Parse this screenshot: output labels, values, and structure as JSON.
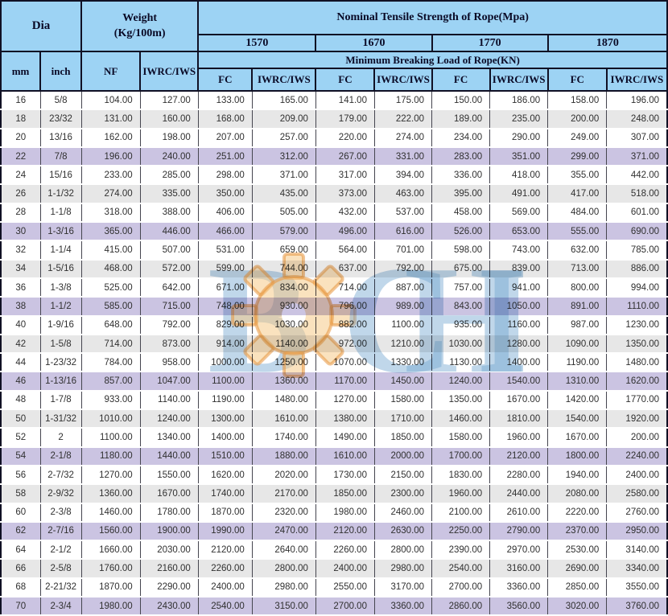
{
  "header": {
    "dia_label": "Dia",
    "weight_label": "Weight",
    "weight_unit": "(Kg/100m)",
    "nominal_label": "Nominal Tensile Strength of Rope(Mpa)",
    "grades": [
      "1570",
      "1670",
      "1770",
      "1870"
    ],
    "min_breaking_label": "Minimum Breaking Load of Rope(KN)",
    "col_mm": "mm",
    "col_inch": "inch",
    "col_nf": "NF",
    "col_iwrc": "IWRC/IWS",
    "col_fc": "FC"
  },
  "watermark": {
    "letters": [
      "B",
      "C",
      "H",
      "I"
    ]
  },
  "colors": {
    "header_bg": "#9dd3f4",
    "border_dark": "#101024",
    "grid_line": "#45454f",
    "stripe_gray": "#e7e7e7",
    "stripe_lavender": "#cbc4e2",
    "watermark_blue": "#74a6d1",
    "watermark_orange": "#e8963e"
  },
  "rows": [
    {
      "mm": "16",
      "inch": "5/8",
      "nf": "104.00",
      "iwrc_iws": "127.00",
      "loads": [
        "133.00",
        "165.00",
        "141.00",
        "175.00",
        "150.00",
        "186.00",
        "158.00",
        "196.00"
      ],
      "stripe": "white"
    },
    {
      "mm": "18",
      "inch": "23/32",
      "nf": "131.00",
      "iwrc_iws": "160.00",
      "loads": [
        "168.00",
        "209.00",
        "179.00",
        "222.00",
        "189.00",
        "235.00",
        "200.00",
        "248.00"
      ],
      "stripe": "gray"
    },
    {
      "mm": "20",
      "inch": "13/16",
      "nf": "162.00",
      "iwrc_iws": "198.00",
      "loads": [
        "207.00",
        "257.00",
        "220.00",
        "274.00",
        "234.00",
        "290.00",
        "249.00",
        "307.00"
      ],
      "stripe": "white"
    },
    {
      "mm": "22",
      "inch": "7/8",
      "nf": "196.00",
      "iwrc_iws": "240.00",
      "loads": [
        "251.00",
        "312.00",
        "267.00",
        "331.00",
        "283.00",
        "351.00",
        "299.00",
        "371.00"
      ],
      "stripe": "lavender"
    },
    {
      "mm": "24",
      "inch": "15/16",
      "nf": "233.00",
      "iwrc_iws": "285.00",
      "loads": [
        "298.00",
        "371.00",
        "317.00",
        "394.00",
        "336.00",
        "418.00",
        "355.00",
        "442.00"
      ],
      "stripe": "white"
    },
    {
      "mm": "26",
      "inch": "1-1/32",
      "nf": "274.00",
      "iwrc_iws": "335.00",
      "loads": [
        "350.00",
        "435.00",
        "373.00",
        "463.00",
        "395.00",
        "491.00",
        "417.00",
        "518.00"
      ],
      "stripe": "gray"
    },
    {
      "mm": "28",
      "inch": "1-1/8",
      "nf": "318.00",
      "iwrc_iws": "388.00",
      "loads": [
        "406.00",
        "505.00",
        "432.00",
        "537.00",
        "458.00",
        "569.00",
        "484.00",
        "601.00"
      ],
      "stripe": "white"
    },
    {
      "mm": "30",
      "inch": "1-3/16",
      "nf": "365.00",
      "iwrc_iws": "446.00",
      "loads": [
        "466.00",
        "579.00",
        "496.00",
        "616.00",
        "526.00",
        "653.00",
        "555.00",
        "690.00"
      ],
      "stripe": "lavender"
    },
    {
      "mm": "32",
      "inch": "1-1/4",
      "nf": "415.00",
      "iwrc_iws": "507.00",
      "loads": [
        "531.00",
        "659.00",
        "564.00",
        "701.00",
        "598.00",
        "743.00",
        "632.00",
        "785.00"
      ],
      "stripe": "white"
    },
    {
      "mm": "34",
      "inch": "1-5/16",
      "nf": "468.00",
      "iwrc_iws": "572.00",
      "loads": [
        "599.00",
        "744.00",
        "637.00",
        "792.00",
        "675.00",
        "839.00",
        "713.00",
        "886.00"
      ],
      "stripe": "gray"
    },
    {
      "mm": "36",
      "inch": "1-3/8",
      "nf": "525.00",
      "iwrc_iws": "642.00",
      "loads": [
        "671.00",
        "834.00",
        "714.00",
        "887.00",
        "757.00",
        "941.00",
        "800.00",
        "994.00"
      ],
      "stripe": "white"
    },
    {
      "mm": "38",
      "inch": "1-1/2",
      "nf": "585.00",
      "iwrc_iws": "715.00",
      "loads": [
        "748.00",
        "930.00",
        "796.00",
        "989.00",
        "843.00",
        "1050.00",
        "891.00",
        "1110.00"
      ],
      "stripe": "lavender"
    },
    {
      "mm": "40",
      "inch": "1-9/16",
      "nf": "648.00",
      "iwrc_iws": "792.00",
      "loads": [
        "829.00",
        "1030.00",
        "882.00",
        "1100.00",
        "935.00",
        "1160.00",
        "987.00",
        "1230.00"
      ],
      "stripe": "white"
    },
    {
      "mm": "42",
      "inch": "1-5/8",
      "nf": "714.00",
      "iwrc_iws": "873.00",
      "loads": [
        "914.00",
        "1140.00",
        "972.00",
        "1210.00",
        "1030.00",
        "1280.00",
        "1090.00",
        "1350.00"
      ],
      "stripe": "gray"
    },
    {
      "mm": "44",
      "inch": "1-23/32",
      "nf": "784.00",
      "iwrc_iws": "958.00",
      "loads": [
        "1000.00",
        "1250.00",
        "1070.00",
        "1330.00",
        "1130.00",
        "1400.00",
        "1190.00",
        "1480.00"
      ],
      "stripe": "white"
    },
    {
      "mm": "46",
      "inch": "1-13/16",
      "nf": "857.00",
      "iwrc_iws": "1047.00",
      "loads": [
        "1100.00",
        "1360.00",
        "1170.00",
        "1450.00",
        "1240.00",
        "1540.00",
        "1310.00",
        "1620.00"
      ],
      "stripe": "lavender"
    },
    {
      "mm": "48",
      "inch": "1-7/8",
      "nf": "933.00",
      "iwrc_iws": "1140.00",
      "loads": [
        "1190.00",
        "1480.00",
        "1270.00",
        "1580.00",
        "1350.00",
        "1670.00",
        "1420.00",
        "1770.00"
      ],
      "stripe": "white"
    },
    {
      "mm": "50",
      "inch": "1-31/32",
      "nf": "1010.00",
      "iwrc_iws": "1240.00",
      "loads": [
        "1300.00",
        "1610.00",
        "1380.00",
        "1710.00",
        "1460.00",
        "1810.00",
        "1540.00",
        "1920.00"
      ],
      "stripe": "gray"
    },
    {
      "mm": "52",
      "inch": "2",
      "nf": "1100.00",
      "iwrc_iws": "1340.00",
      "loads": [
        "1400.00",
        "1740.00",
        "1490.00",
        "1850.00",
        "1580.00",
        "1960.00",
        "1670.00",
        "200.00"
      ],
      "stripe": "white"
    },
    {
      "mm": "54",
      "inch": "2-1/8",
      "nf": "1180.00",
      "iwrc_iws": "1440.00",
      "loads": [
        "1510.00",
        "1880.00",
        "1610.00",
        "2000.00",
        "1700.00",
        "2120.00",
        "1800.00",
        "2240.00"
      ],
      "stripe": "lavender"
    },
    {
      "mm": "56",
      "inch": "2-7/32",
      "nf": "1270.00",
      "iwrc_iws": "1550.00",
      "loads": [
        "1620.00",
        "2020.00",
        "1730.00",
        "2150.00",
        "1830.00",
        "2280.00",
        "1940.00",
        "2400.00"
      ],
      "stripe": "white"
    },
    {
      "mm": "58",
      "inch": "2-9/32",
      "nf": "1360.00",
      "iwrc_iws": "1670.00",
      "loads": [
        "1740.00",
        "2170.00",
        "1850.00",
        "2300.00",
        "1960.00",
        "2440.00",
        "2080.00",
        "2580.00"
      ],
      "stripe": "gray"
    },
    {
      "mm": "60",
      "inch": "2-3/8",
      "nf": "1460.00",
      "iwrc_iws": "1780.00",
      "loads": [
        "1870.00",
        "2320.00",
        "1980.00",
        "2460.00",
        "2100.00",
        "2610.00",
        "2220.00",
        "2760.00"
      ],
      "stripe": "white"
    },
    {
      "mm": "62",
      "inch": "2-7/16",
      "nf": "1560.00",
      "iwrc_iws": "1900.00",
      "loads": [
        "1990.00",
        "2470.00",
        "2120.00",
        "2630.00",
        "2250.00",
        "2790.00",
        "2370.00",
        "2950.00"
      ],
      "stripe": "lavender"
    },
    {
      "mm": "64",
      "inch": "2-1/2",
      "nf": "1660.00",
      "iwrc_iws": "2030.00",
      "loads": [
        "2120.00",
        "2640.00",
        "2260.00",
        "2800.00",
        "2390.00",
        "2970.00",
        "2530.00",
        "3140.00"
      ],
      "stripe": "white"
    },
    {
      "mm": "66",
      "inch": "2-5/8",
      "nf": "1760.00",
      "iwrc_iws": "2160.00",
      "loads": [
        "2260.00",
        "2800.00",
        "2400.00",
        "2980.00",
        "2540.00",
        "3160.00",
        "2690.00",
        "3340.00"
      ],
      "stripe": "gray"
    },
    {
      "mm": "68",
      "inch": "2-21/32",
      "nf": "1870.00",
      "iwrc_iws": "2290.00",
      "loads": [
        "2400.00",
        "2980.00",
        "2550.00",
        "3170.00",
        "2700.00",
        "3360.00",
        "2850.00",
        "3550.00"
      ],
      "stripe": "white"
    },
    {
      "mm": "70",
      "inch": "2-3/4",
      "nf": "1980.00",
      "iwrc_iws": "2430.00",
      "loads": [
        "2540.00",
        "3150.00",
        "2700.00",
        "3360.00",
        "2860.00",
        "3560.00",
        "3020.00",
        "3760.00"
      ],
      "stripe": "lavender"
    }
  ]
}
